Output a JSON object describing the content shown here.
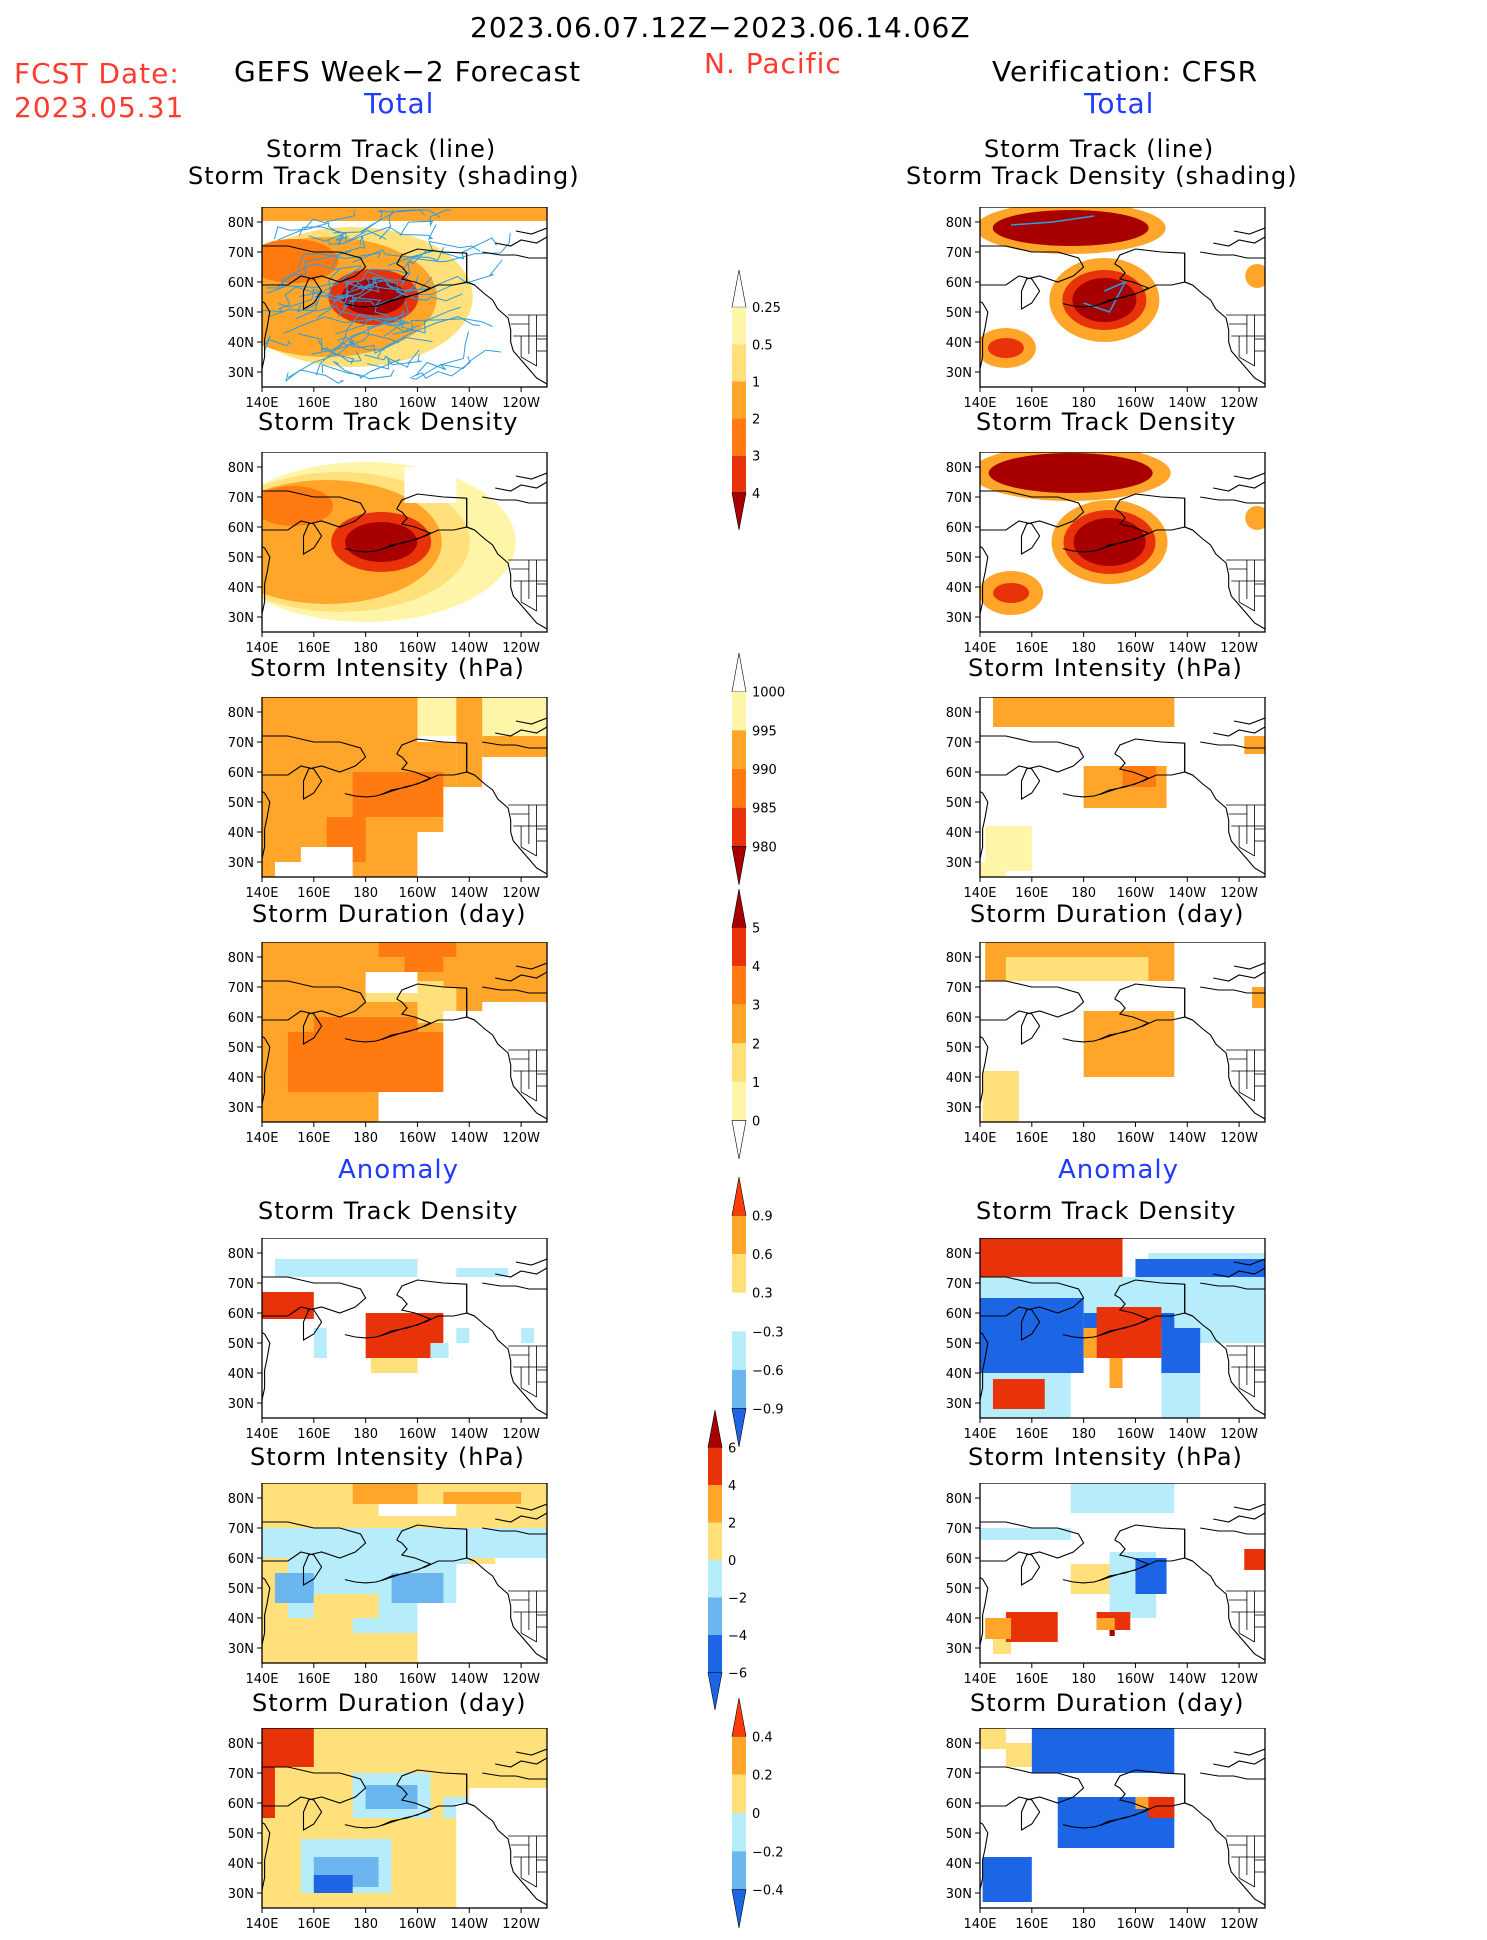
{
  "header": {
    "period": "2023.06.07.12Z−2023.06.14.06Z",
    "region": "N. Pacific",
    "fcst_label": "FCST Date:",
    "fcst_date": "2023.05.31",
    "left_title": "GEFS Week−2 Forecast",
    "right_title": "Verification: CFSR",
    "left_sub": "Total",
    "right_sub": "Total",
    "anomaly_left": "Anomaly",
    "anomaly_right": "Anomaly"
  },
  "panel_titles": {
    "track": [
      "Storm Track (line)",
      "Storm Track Density (shading)"
    ],
    "density": "Storm Track Density",
    "intensity": "Storm Intensity (hPa)",
    "duration": "Storm Duration (day)"
  },
  "colors": {
    "c_pale": "#fff5a8",
    "c_yel": "#ffe07a",
    "c_ora": "#ffa62a",
    "c_dora": "#ff7a10",
    "c_red": "#e8320a",
    "c_dred": "#a80000",
    "c_lblue": "#b7ecfa",
    "c_mblue": "#6cb6f0",
    "c_blue": "#1c66e6",
    "c_dblue": "#1240c8",
    "track_line": "#2a9ee0"
  },
  "chart_data": [
    {
      "type": "heatmap",
      "id": "map-axes",
      "x_ticks": [
        "140E",
        "160E",
        "180",
        "160W",
        "140W",
        "120W"
      ],
      "y_ticks": [
        "80N",
        "70N",
        "60N",
        "50N",
        "40N",
        "30N"
      ],
      "xlim_deg_east": [
        140,
        250
      ],
      "ylim_deg_north": [
        25,
        85
      ]
    },
    {
      "type": "heatmap",
      "id": "colorbar-density-total",
      "levels": [
        "0.25",
        "0.5",
        "1",
        "2",
        "3",
        "4"
      ],
      "colors": [
        "#ffffff",
        "#fff5a8",
        "#ffe07a",
        "#ffa62a",
        "#ff7a10",
        "#e8320a",
        "#a80000"
      ]
    },
    {
      "type": "heatmap",
      "id": "colorbar-intensity-total",
      "levels": [
        "1000",
        "995",
        "990",
        "985",
        "980"
      ],
      "colors": [
        "#ffffff",
        "#fff5a8",
        "#ffa62a",
        "#ff7a10",
        "#e8320a",
        "#a80000"
      ]
    },
    {
      "type": "heatmap",
      "id": "colorbar-duration-total",
      "levels": [
        "5",
        "4",
        "3",
        "2",
        "1",
        "0"
      ],
      "colors": [
        "#a80000",
        "#e8320a",
        "#ff7a10",
        "#ffa62a",
        "#ffe07a",
        "#fff5a8",
        "#ffffff"
      ]
    },
    {
      "type": "heatmap",
      "id": "colorbar-density-anom",
      "levels": [
        "0.9",
        "0.6",
        "0.3",
        "−0.3",
        "−0.6",
        "−0.9"
      ],
      "colors": [
        "#ff3b0a",
        "#ffa62a",
        "#ffe07a",
        "#ffffff",
        "#b7ecfa",
        "#6cb6f0",
        "#1c66e6"
      ]
    },
    {
      "type": "heatmap",
      "id": "colorbar-intensity-anom",
      "levels": [
        "6",
        "4",
        "2",
        "0",
        "−2",
        "−4",
        "−6"
      ],
      "colors": [
        "#a80000",
        "#e8320a",
        "#ffa62a",
        "#ffe07a",
        "#b7ecfa",
        "#6cb6f0",
        "#1c66e6",
        "#1c66e6"
      ]
    },
    {
      "type": "heatmap",
      "id": "colorbar-duration-anom",
      "levels": [
        "0.4",
        "0.2",
        "0",
        "−0.2",
        "−0.4"
      ],
      "colors": [
        "#ff3b0a",
        "#ffa62a",
        "#ffe07a",
        "#b7ecfa",
        "#6cb6f0",
        "#1c66e6"
      ]
    }
  ]
}
